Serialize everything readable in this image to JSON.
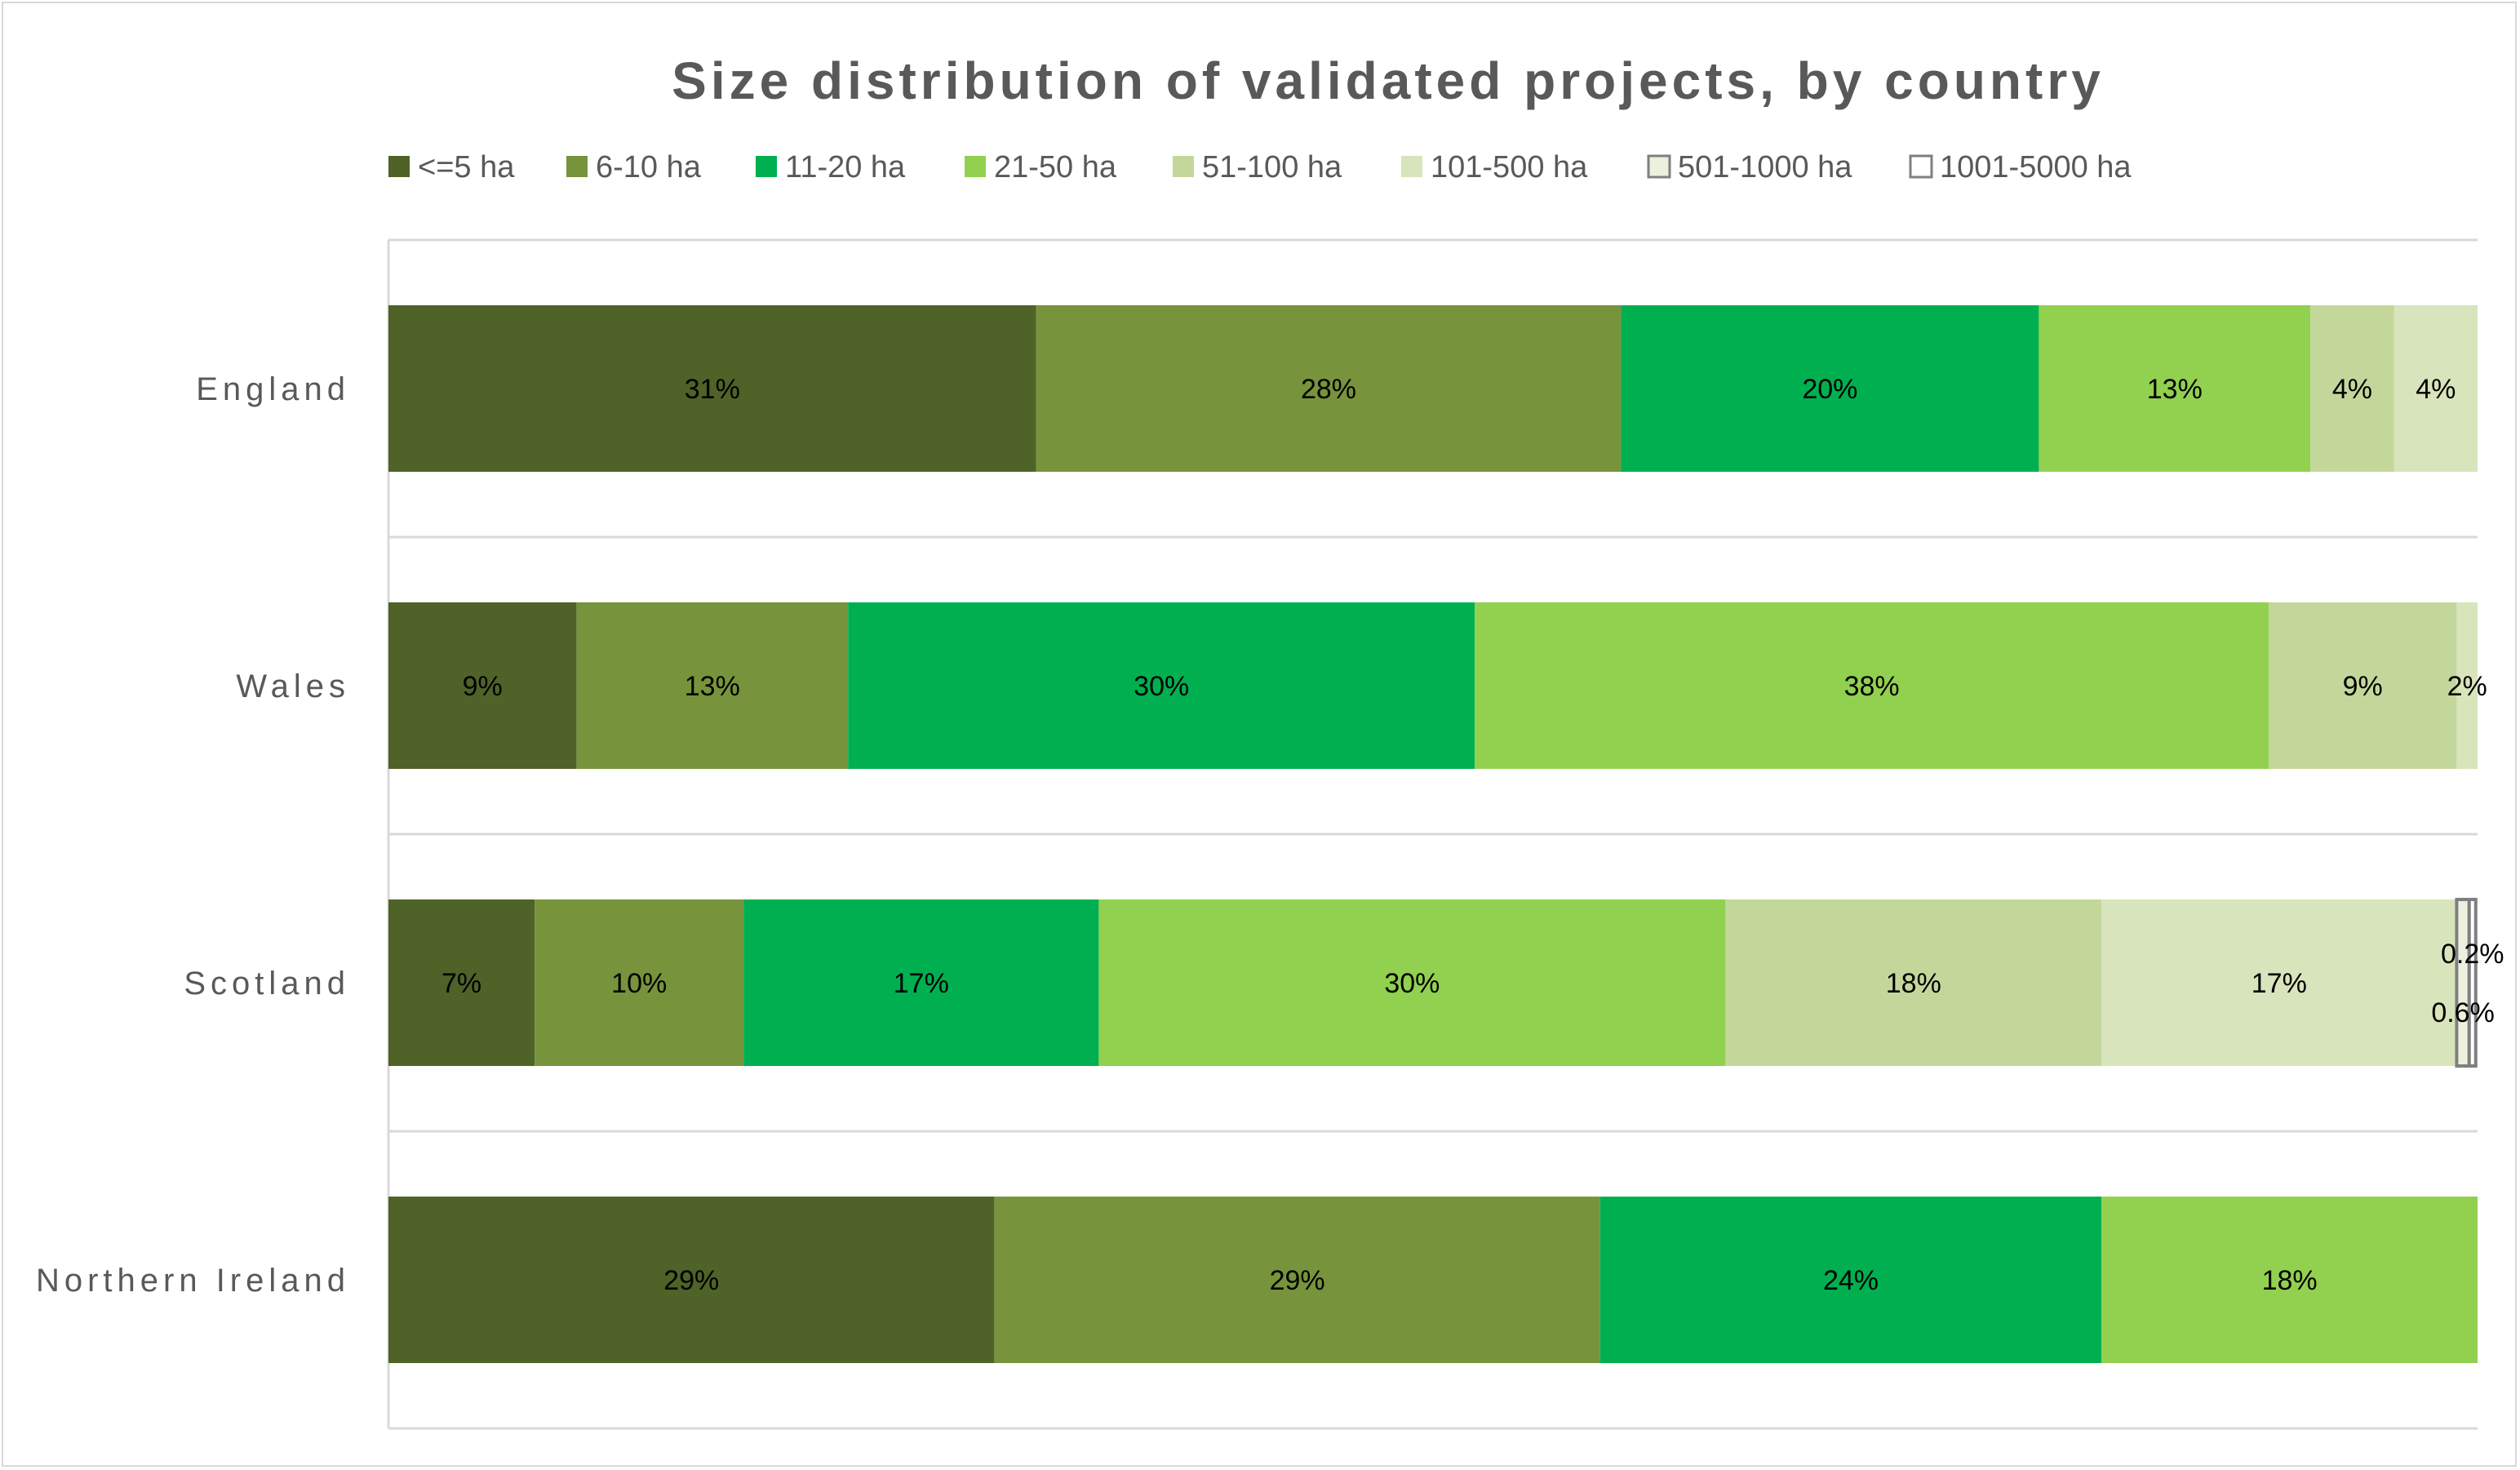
{
  "chart_data": {
    "type": "bar",
    "orientation": "horizontal",
    "stacked": "percent",
    "title": "Size distribution of validated projects, by country",
    "categories": [
      "England",
      "Wales",
      "Scotland",
      "Northern Ireland"
    ],
    "legend_position": "top",
    "xlim": [
      0,
      100
    ],
    "grid": true,
    "series": [
      {
        "name": "<=5 ha",
        "color": "#4f6228",
        "values": [
          31,
          9,
          7,
          29
        ],
        "labels": [
          "31%",
          "9%",
          "7%",
          "29%"
        ]
      },
      {
        "name": "6-10 ha",
        "color": "#77933c",
        "values": [
          28,
          13,
          10,
          29
        ],
        "labels": [
          "28%",
          "13%",
          "10%",
          "29%"
        ]
      },
      {
        "name": "11-20 ha",
        "color": "#00b050",
        "values": [
          20,
          30,
          17,
          24
        ],
        "labels": [
          "20%",
          "30%",
          "17%",
          "24%"
        ]
      },
      {
        "name": "21-50 ha",
        "color": "#92d050",
        "values": [
          13,
          38,
          30,
          18
        ],
        "labels": [
          "13%",
          "38%",
          "30%",
          "18%"
        ]
      },
      {
        "name": "51-100 ha",
        "color": "#c4d79b",
        "values": [
          4,
          9,
          18,
          0
        ],
        "labels": [
          "4%",
          "9%",
          "18%",
          ""
        ]
      },
      {
        "name": "101-500 ha",
        "color": "#d8e4bc",
        "values": [
          4,
          2,
          17,
          0
        ],
        "labels": [
          "4%",
          "2%",
          "17%",
          ""
        ]
      },
      {
        "name": "501-1000 ha",
        "color": "#ebf1de",
        "border": "#7f7f7f",
        "values": [
          0,
          0,
          0.6,
          0
        ],
        "labels": [
          "",
          "",
          "0.6%",
          ""
        ]
      },
      {
        "name": "1001-5000 ha",
        "color": "#ffffff",
        "border": "#7f7f7f",
        "values": [
          0,
          0,
          0.2,
          0
        ],
        "labels": [
          "",
          "",
          "0.2%",
          ""
        ]
      }
    ]
  }
}
